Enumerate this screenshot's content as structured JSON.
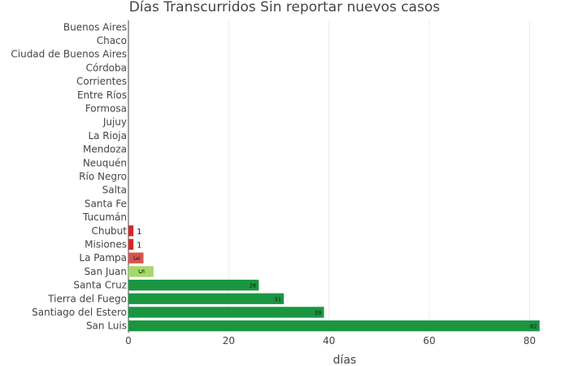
{
  "chart_data": {
    "type": "bar",
    "orientation": "horizontal",
    "title": "Días Transcurridos Sin reportar nuevos casos",
    "xlabel": "días",
    "ylabel": "",
    "xlim": [
      0,
      83
    ],
    "xticks": [
      0,
      20,
      40,
      60,
      80
    ],
    "grid": true,
    "categories": [
      "Buenos Aires",
      "Chaco",
      "Ciudad de Buenos Aires",
      "Córdoba",
      "Corrientes",
      "Entre Ríos",
      "Formosa",
      "Jujuy",
      "La Rioja",
      "Mendoza",
      "Neuquén",
      "Río Negro",
      "Salta",
      "Santa Fe",
      "Tucumán",
      "Chubut",
      "Misiones",
      "La Pampa",
      "San Juan",
      "Santa Cruz",
      "Tierra del Fuego",
      "Santiago del Estero",
      "San Luis"
    ],
    "values": [
      0,
      0,
      0,
      0,
      0,
      0,
      0,
      0,
      0,
      0,
      0,
      0,
      0,
      0,
      0,
      1,
      1,
      3,
      5,
      26,
      31,
      39,
      82
    ],
    "bar_colors": [
      "#d62728",
      "#d62728",
      "#d62728",
      "#d62728",
      "#d62728",
      "#d62728",
      "#d62728",
      "#d62728",
      "#d62728",
      "#d62728",
      "#d62728",
      "#d62728",
      "#d62728",
      "#d62728",
      "#d62728",
      "#d62728",
      "#d62728",
      "#d9534f",
      "#a6d96a",
      "#1a9641",
      "#1a9641",
      "#1a9641",
      "#1a9641"
    ],
    "label_position": [
      "",
      "",
      "",
      "",
      "",
      "",
      "",
      "",
      "",
      "",
      "",
      "",
      "",
      "",
      "",
      "outside",
      "outside",
      "inside-rotated",
      "inside-rotated",
      "inside",
      "inside",
      "inside",
      "inside"
    ]
  }
}
